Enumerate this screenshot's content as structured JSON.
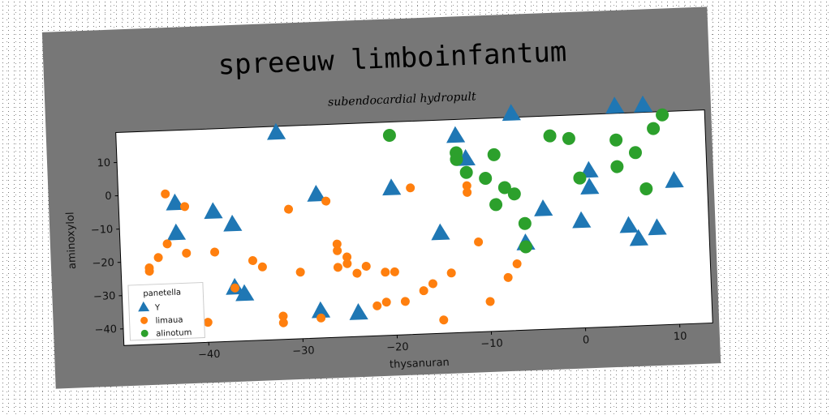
{
  "chart_data": {
    "type": "scatter",
    "title": "spreeuw limboinfantum",
    "subtitle": "subendocardial hydropult",
    "xlabel": "thysanuran",
    "ylabel": "aminoxylol",
    "xlim": [
      -49,
      13.5
    ],
    "ylim": [
      -45,
      19
    ],
    "xticks": [
      -40,
      -30,
      -20,
      -10,
      0,
      10
    ],
    "yticks": [
      -40,
      -30,
      -20,
      -10,
      0,
      10
    ],
    "grid": false,
    "legend": {
      "title": "panetella",
      "position": "bottom-left"
    },
    "series": [
      {
        "name": "Y",
        "marker": "triangle",
        "color": "#1f77b4",
        "x": [
          -32,
          -43,
          -43,
          -39,
          -37,
          -37,
          -36,
          -28,
          -28,
          -24,
          -20,
          -15,
          -13,
          -12,
          -7,
          -6,
          -4,
          0,
          1,
          1,
          4,
          5,
          6,
          7,
          8,
          10
        ],
        "y": [
          17,
          -3,
          -12,
          -6,
          -10,
          -29,
          -31,
          -2,
          -37,
          -38,
          -1,
          -15,
          14,
          7,
          20,
          -19,
          -9,
          -13,
          2,
          -3,
          21,
          -15,
          -19,
          21,
          -16,
          -2
        ]
      },
      {
        "name": "limaua",
        "marker": "circle",
        "color": "#ff7f0e",
        "x": [
          -46,
          -46,
          -45,
          -44,
          -44,
          -42,
          -42,
          -40,
          -39,
          -37,
          -35,
          -34,
          -32,
          -32,
          -31,
          -30,
          -28,
          -27,
          -26,
          -26,
          -26,
          -25,
          -25,
          -24,
          -23,
          -22,
          -21,
          -21,
          -20,
          -19,
          -18,
          -17,
          -16,
          -15,
          -14,
          -12,
          -12,
          -11,
          -10,
          -8,
          -7
        ],
        "y": [
          -23,
          -22,
          -19,
          0,
          -15,
          -4,
          -18,
          -39,
          -18,
          -29,
          -21,
          -23,
          -40,
          -38,
          -6,
          -25,
          -39,
          -4,
          -24,
          -17,
          -19,
          -21,
          -23,
          -26,
          -24,
          -36,
          -26,
          -35,
          -26,
          -35,
          -1,
          -32,
          -30,
          -41,
          -27,
          -1,
          -3,
          -18,
          -36,
          -29,
          -25
        ]
      },
      {
        "name": "alinotum",
        "marker": "circle",
        "color": "#2ca02c",
        "x": [
          -20,
          -13,
          -13,
          -12,
          -10,
          -9,
          -9,
          -8,
          -7,
          -6,
          -6,
          -3,
          -1,
          0,
          4,
          4,
          6,
          7,
          8,
          9
        ],
        "y": [
          15,
          9,
          7,
          3,
          1,
          -7,
          8,
          -2,
          -4,
          -13,
          -20,
          13,
          12,
          0,
          3,
          11,
          7,
          -4,
          14,
          18
        ]
      }
    ]
  }
}
